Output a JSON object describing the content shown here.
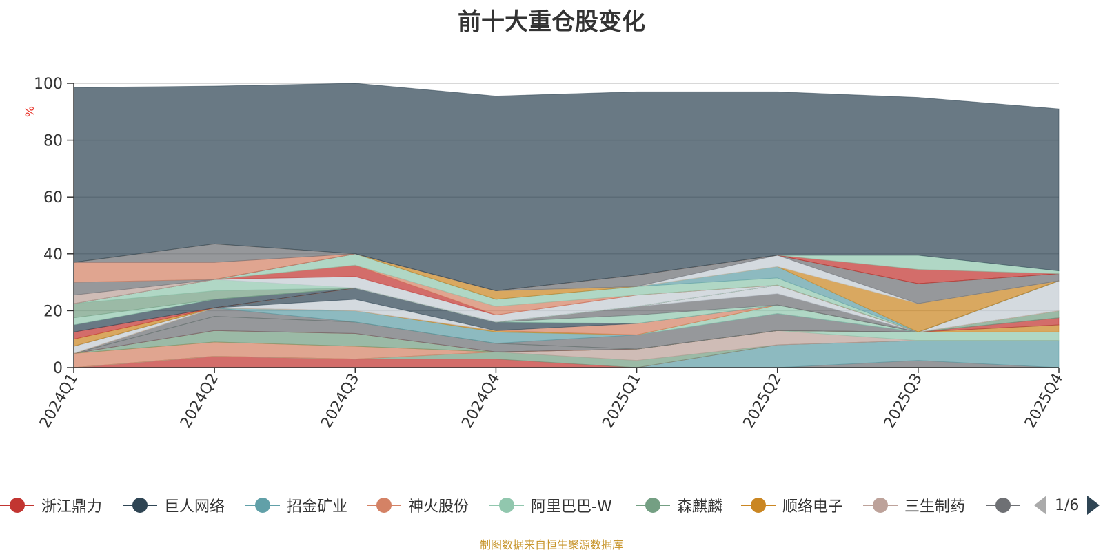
{
  "chart_data": {
    "type": "area",
    "stacked": true,
    "title": "前十大重仓股变化",
    "ylabel": "%",
    "ylim": [
      0,
      100
    ],
    "yticks": [
      0,
      20,
      40,
      60,
      80,
      100
    ],
    "categories": [
      "2024Q1",
      "2024Q2",
      "2024Q3",
      "2024Q4",
      "2025Q1",
      "2025Q2",
      "2025Q3",
      "2025Q4"
    ],
    "grid": true,
    "legend_position": "bottom",
    "series": [
      {
        "name": "",
        "color": "#6e7074",
        "values": [
          0,
          0,
          0,
          0,
          0,
          0,
          2.5,
          0
        ]
      },
      {
        "name": "",
        "color": "#61a0a8",
        "values": [
          0,
          0,
          0,
          0,
          0,
          8,
          7,
          9.5
        ]
      },
      {
        "name": "",
        "color": "#c23531",
        "values": [
          0,
          4,
          3,
          3,
          0,
          0,
          0,
          0
        ]
      },
      {
        "name": "",
        "color": "#749f83",
        "values": [
          0,
          0,
          0,
          2.5,
          2.5,
          0,
          0,
          0
        ]
      },
      {
        "name": "",
        "color": "#bda29a",
        "values": [
          0,
          0,
          0,
          0,
          4,
          5,
          0,
          0
        ]
      },
      {
        "name": "",
        "color": "#91c7ae",
        "values": [
          0,
          0,
          0,
          0,
          0,
          0,
          3,
          3
        ]
      },
      {
        "name": "",
        "color": "#d48265",
        "values": [
          5,
          5,
          4.5,
          0,
          0,
          0,
          0,
          0
        ]
      },
      {
        "name": "",
        "color": "#ca8622",
        "values": [
          0,
          0,
          0,
          0,
          0,
          0,
          0,
          2.5
        ]
      },
      {
        "name": "",
        "color": "#749f83",
        "values": [
          0,
          4,
          4.5,
          0,
          0,
          0,
          0,
          0
        ]
      },
      {
        "name": "",
        "color": "#c23531",
        "values": [
          0,
          0,
          0,
          0,
          0,
          0,
          0,
          2.5
        ]
      },
      {
        "name": "",
        "color": "#6e7074",
        "values": [
          0,
          5,
          4,
          3,
          0,
          0,
          0,
          0
        ]
      },
      {
        "name": "",
        "color": "#749f83",
        "values": [
          0,
          0,
          0,
          0,
          0,
          0,
          0,
          2.5
        ]
      },
      {
        "name": "",
        "color": "#6e7074",
        "values": [
          0,
          3,
          0,
          0,
          5,
          6,
          0,
          0
        ]
      },
      {
        "name": "",
        "color": "#61a0a8",
        "values": [
          0,
          0,
          4,
          4,
          0,
          0,
          0,
          0
        ]
      },
      {
        "name": "",
        "color": "#91c7ae",
        "values": [
          0,
          0,
          0,
          0,
          0,
          3,
          0,
          0
        ]
      },
      {
        "name": "",
        "color": "#ca8622",
        "values": [
          0,
          0,
          0,
          0.5,
          0,
          0,
          0,
          0
        ]
      },
      {
        "name": "",
        "color": "#d48265",
        "values": [
          0,
          0,
          0,
          0,
          4,
          0,
          0,
          0
        ]
      },
      {
        "name": "",
        "color": "#c4ccd3",
        "values": [
          2.5,
          0,
          4,
          0,
          0,
          0,
          0,
          10.5
        ]
      },
      {
        "name": "",
        "color": "#2f4554",
        "values": [
          0,
          0,
          4,
          3,
          0,
          0,
          0,
          0
        ]
      },
      {
        "name": "",
        "color": "#91c7ae",
        "values": [
          0,
          0,
          0,
          0,
          3,
          0,
          0,
          0
        ]
      },
      {
        "name": "",
        "color": "#6e7074",
        "values": [
          0,
          0,
          0,
          0,
          3,
          4,
          0,
          0
        ]
      },
      {
        "name": "",
        "color": "#c4ccd3",
        "values": [
          0,
          0,
          0,
          0,
          0,
          3,
          0,
          0
        ]
      },
      {
        "name": "",
        "color": "#ca8622",
        "values": [
          2.5,
          0,
          0,
          0,
          0,
          0,
          0,
          0
        ]
      },
      {
        "name": "",
        "color": "#c23531",
        "values": [
          2.5,
          0,
          0,
          0,
          0,
          0,
          0,
          0
        ]
      },
      {
        "name": "",
        "color": "#2f4554",
        "values": [
          2.5,
          3,
          0,
          0,
          0,
          0,
          0,
          0
        ]
      },
      {
        "name": "",
        "color": "#91c7ae",
        "values": [
          2.5,
          0,
          0,
          0,
          0,
          0,
          0,
          0
        ]
      },
      {
        "name": "",
        "color": "#749f83",
        "values": [
          5,
          3,
          0,
          0,
          0,
          0,
          0,
          0
        ]
      },
      {
        "name": "",
        "color": "#91c7ae",
        "values": [
          0,
          4,
          0,
          0,
          0,
          0,
          0,
          0
        ]
      },
      {
        "name": "",
        "color": "#c4ccd3",
        "values": [
          0,
          0,
          4,
          2.5,
          4,
          0,
          0,
          0
        ]
      },
      {
        "name": "",
        "color": "#c23531",
        "values": [
          0,
          0,
          4,
          0,
          0,
          0,
          0,
          0
        ]
      },
      {
        "name": "",
        "color": "#d48265",
        "values": [
          0,
          0,
          0,
          3,
          0,
          0,
          0,
          0
        ]
      },
      {
        "name": "",
        "color": "#91c7ae",
        "values": [
          0,
          0,
          4,
          2.5,
          3,
          2.5,
          0,
          0
        ]
      },
      {
        "name": "",
        "color": "#61a0a8",
        "values": [
          0,
          0,
          0,
          0,
          0,
          4,
          0,
          0
        ]
      },
      {
        "name": "",
        "color": "#ca8622",
        "values": [
          0,
          0,
          0,
          3,
          0,
          0,
          10,
          0
        ]
      },
      {
        "name": "",
        "color": "#c4ccd3",
        "values": [
          0,
          0,
          0,
          0,
          0,
          4,
          0,
          0
        ]
      },
      {
        "name": "",
        "color": "#6e7074",
        "values": [
          0,
          0,
          0,
          0,
          4,
          0,
          7,
          2.5
        ]
      },
      {
        "name": "",
        "color": "#bda29a",
        "values": [
          3,
          0,
          0,
          0,
          0,
          0,
          0,
          0
        ]
      },
      {
        "name": "",
        "color": "#6e7074",
        "values": [
          4.5,
          0,
          0,
          0,
          0,
          0,
          0,
          0
        ]
      },
      {
        "name": "",
        "color": "#d48265",
        "values": [
          7,
          6,
          0,
          0,
          0,
          0,
          0,
          0
        ]
      },
      {
        "name": "",
        "color": "#6e7074",
        "values": [
          0,
          6.5,
          0,
          0,
          0,
          0,
          0,
          0
        ]
      },
      {
        "name": "",
        "color": "#c23531",
        "values": [
          0,
          0,
          0,
          0,
          0,
          0,
          5,
          0
        ]
      },
      {
        "name": "",
        "color": "#91c7ae",
        "values": [
          0,
          0,
          0,
          0,
          0,
          0,
          5,
          1
        ]
      },
      {
        "name": "",
        "color": "#2f4554",
        "values": [
          61.5,
          55.5,
          60,
          68.5,
          64.5,
          57.5,
          55.5,
          57
        ]
      }
    ]
  },
  "legend": {
    "items": [
      {
        "name": "浙江鼎力",
        "color": "#c23531"
      },
      {
        "name": "巨人网络",
        "color": "#2f4554"
      },
      {
        "name": "招金矿业",
        "color": "#61a0a8"
      },
      {
        "name": "神火股份",
        "color": "#d48265"
      },
      {
        "name": "阿里巴巴-W",
        "color": "#91c7ae"
      },
      {
        "name": "森麒麟",
        "color": "#749f83"
      },
      {
        "name": "顺络电子",
        "color": "#ca8622"
      },
      {
        "name": "三生制药",
        "color": "#bda29a"
      },
      {
        "name": "",
        "color": "#6e7074"
      }
    ],
    "page": "1/6"
  },
  "source_text": "制图数据来自恒生聚源数据库"
}
